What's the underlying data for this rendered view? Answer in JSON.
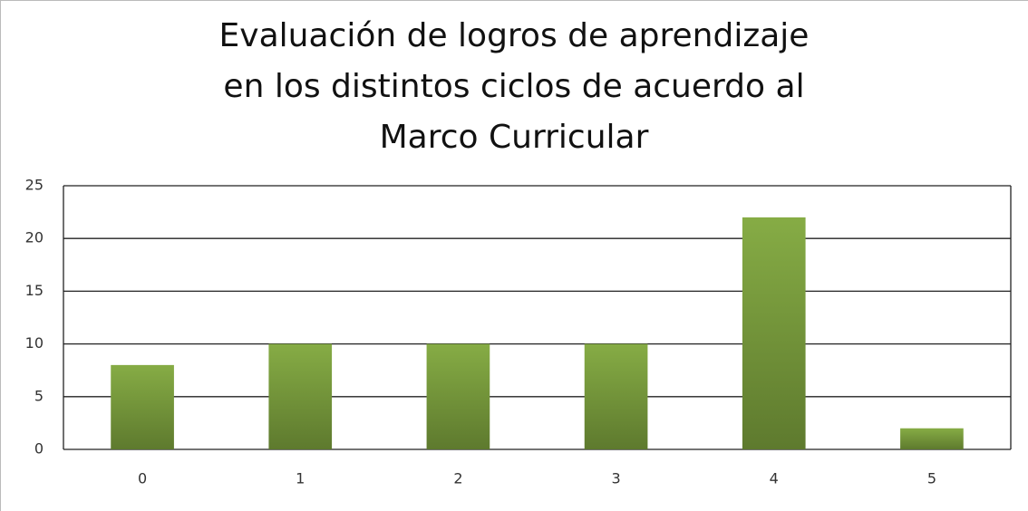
{
  "chart_data": {
    "type": "bar",
    "title": "Evaluación de logros de aprendizaje en los distintos ciclos de acuerdo al Marco Curricular",
    "categories": [
      "0",
      "1",
      "2",
      "3",
      "4",
      "5"
    ],
    "values": [
      8,
      10,
      10,
      10,
      22,
      2
    ],
    "color": "#86ac45",
    "ylim": [
      0,
      25
    ],
    "yticks": [
      0,
      5,
      10,
      15,
      20,
      25
    ],
    "grid": true
  }
}
